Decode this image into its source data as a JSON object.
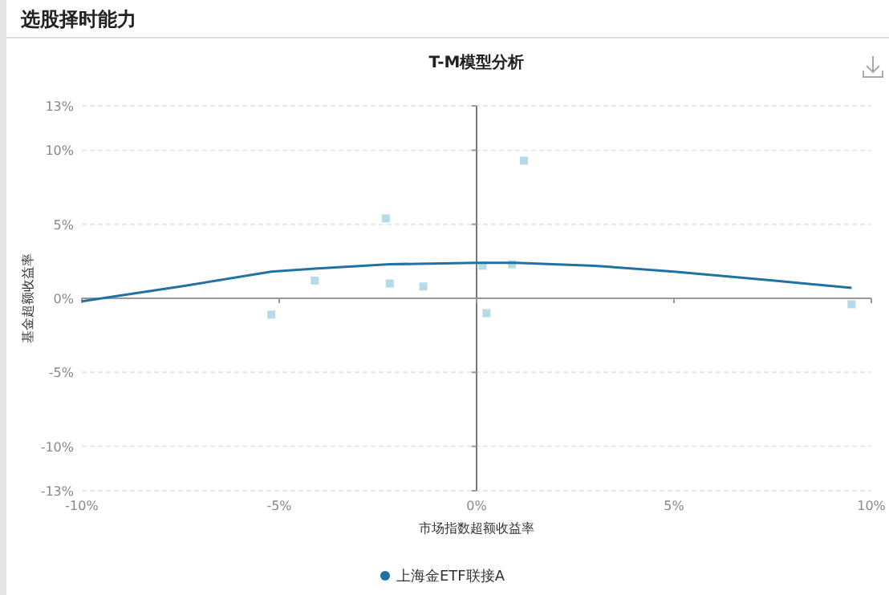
{
  "chart_data": {
    "type": "scatter",
    "title": "选股择时能力",
    "subtitle": "T-M模型分析",
    "xlabel": "市场指数超额收益率",
    "ylabel": "基金超额收益率",
    "xlim": [
      -10,
      10
    ],
    "ylim": [
      -13,
      13
    ],
    "xticks": [
      {
        "value": -10,
        "label": "-10%"
      },
      {
        "value": -5,
        "label": "-5%"
      },
      {
        "value": 0,
        "label": "0%"
      },
      {
        "value": 5,
        "label": "5%"
      },
      {
        "value": 10,
        "label": "10%"
      }
    ],
    "yticks": [
      {
        "value": -13,
        "label": "-13%"
      },
      {
        "value": -10,
        "label": "-10%"
      },
      {
        "value": -5,
        "label": "-5%"
      },
      {
        "value": 0,
        "label": "0%"
      },
      {
        "value": 5,
        "label": "5%"
      },
      {
        "value": 10,
        "label": "10%"
      },
      {
        "value": 13,
        "label": "13%"
      }
    ],
    "grid": "y",
    "legend": "bottom",
    "series": [
      {
        "marker": "square",
        "color": "#b5dbe6",
        "x": [
          -5.2,
          -4.1,
          -2.3,
          -2.2,
          -1.35,
          0.15,
          0.25,
          0.9,
          1.2,
          9.5
        ],
        "values": [
          -1.1,
          1.2,
          5.4,
          1.0,
          0.8,
          2.2,
          -1.0,
          2.3,
          9.3,
          -0.4
        ]
      },
      {
        "type": "line",
        "name": "上海金ETF联接A",
        "marker": "none",
        "line_style": "solid",
        "color": "#2072a3",
        "x": [
          -10,
          -7.5,
          -5.2,
          -4.1,
          -2.2,
          0,
          1,
          3,
          5,
          7.5,
          9.5
        ],
        "values": [
          -0.2,
          0.8,
          1.8,
          2.0,
          2.3,
          2.4,
          2.4,
          2.2,
          1.8,
          1.2,
          0.7
        ]
      }
    ]
  }
}
